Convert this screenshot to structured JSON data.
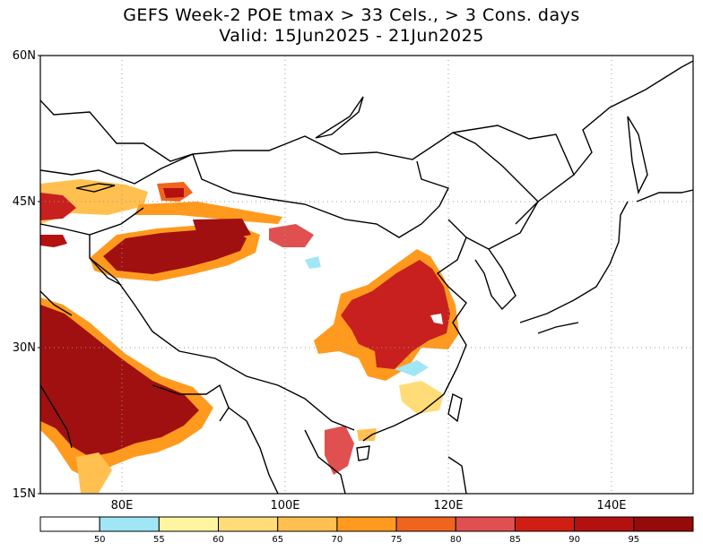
{
  "title": {
    "line1": "GEFS Week-2 POE tmax > 33 Cels., > 3 Cons. days",
    "line2": "Valid: 15Jun2025 - 21Jun2025"
  },
  "map": {
    "lat_labels": [
      "60N",
      "45N",
      "30N",
      "15N"
    ],
    "lon_labels": [
      "80E",
      "100E",
      "120E",
      "140E"
    ],
    "grid": "dotted",
    "colors": {
      "hot_extreme": "#a01010",
      "hot_high": "#c8201e",
      "coast": "#000000"
    }
  },
  "legend": {
    "labels": [
      "50",
      "55",
      "60",
      "65",
      "70",
      "75",
      "80",
      "85",
      "90",
      "95"
    ],
    "colors": [
      "#ffffff",
      "#a0e6f5",
      "#fff5a0",
      "#ffdc78",
      "#ffc050",
      "#ff9a1e",
      "#f0641e",
      "#e05050",
      "#d01e14",
      "#b41010",
      "#960a0a"
    ]
  }
}
